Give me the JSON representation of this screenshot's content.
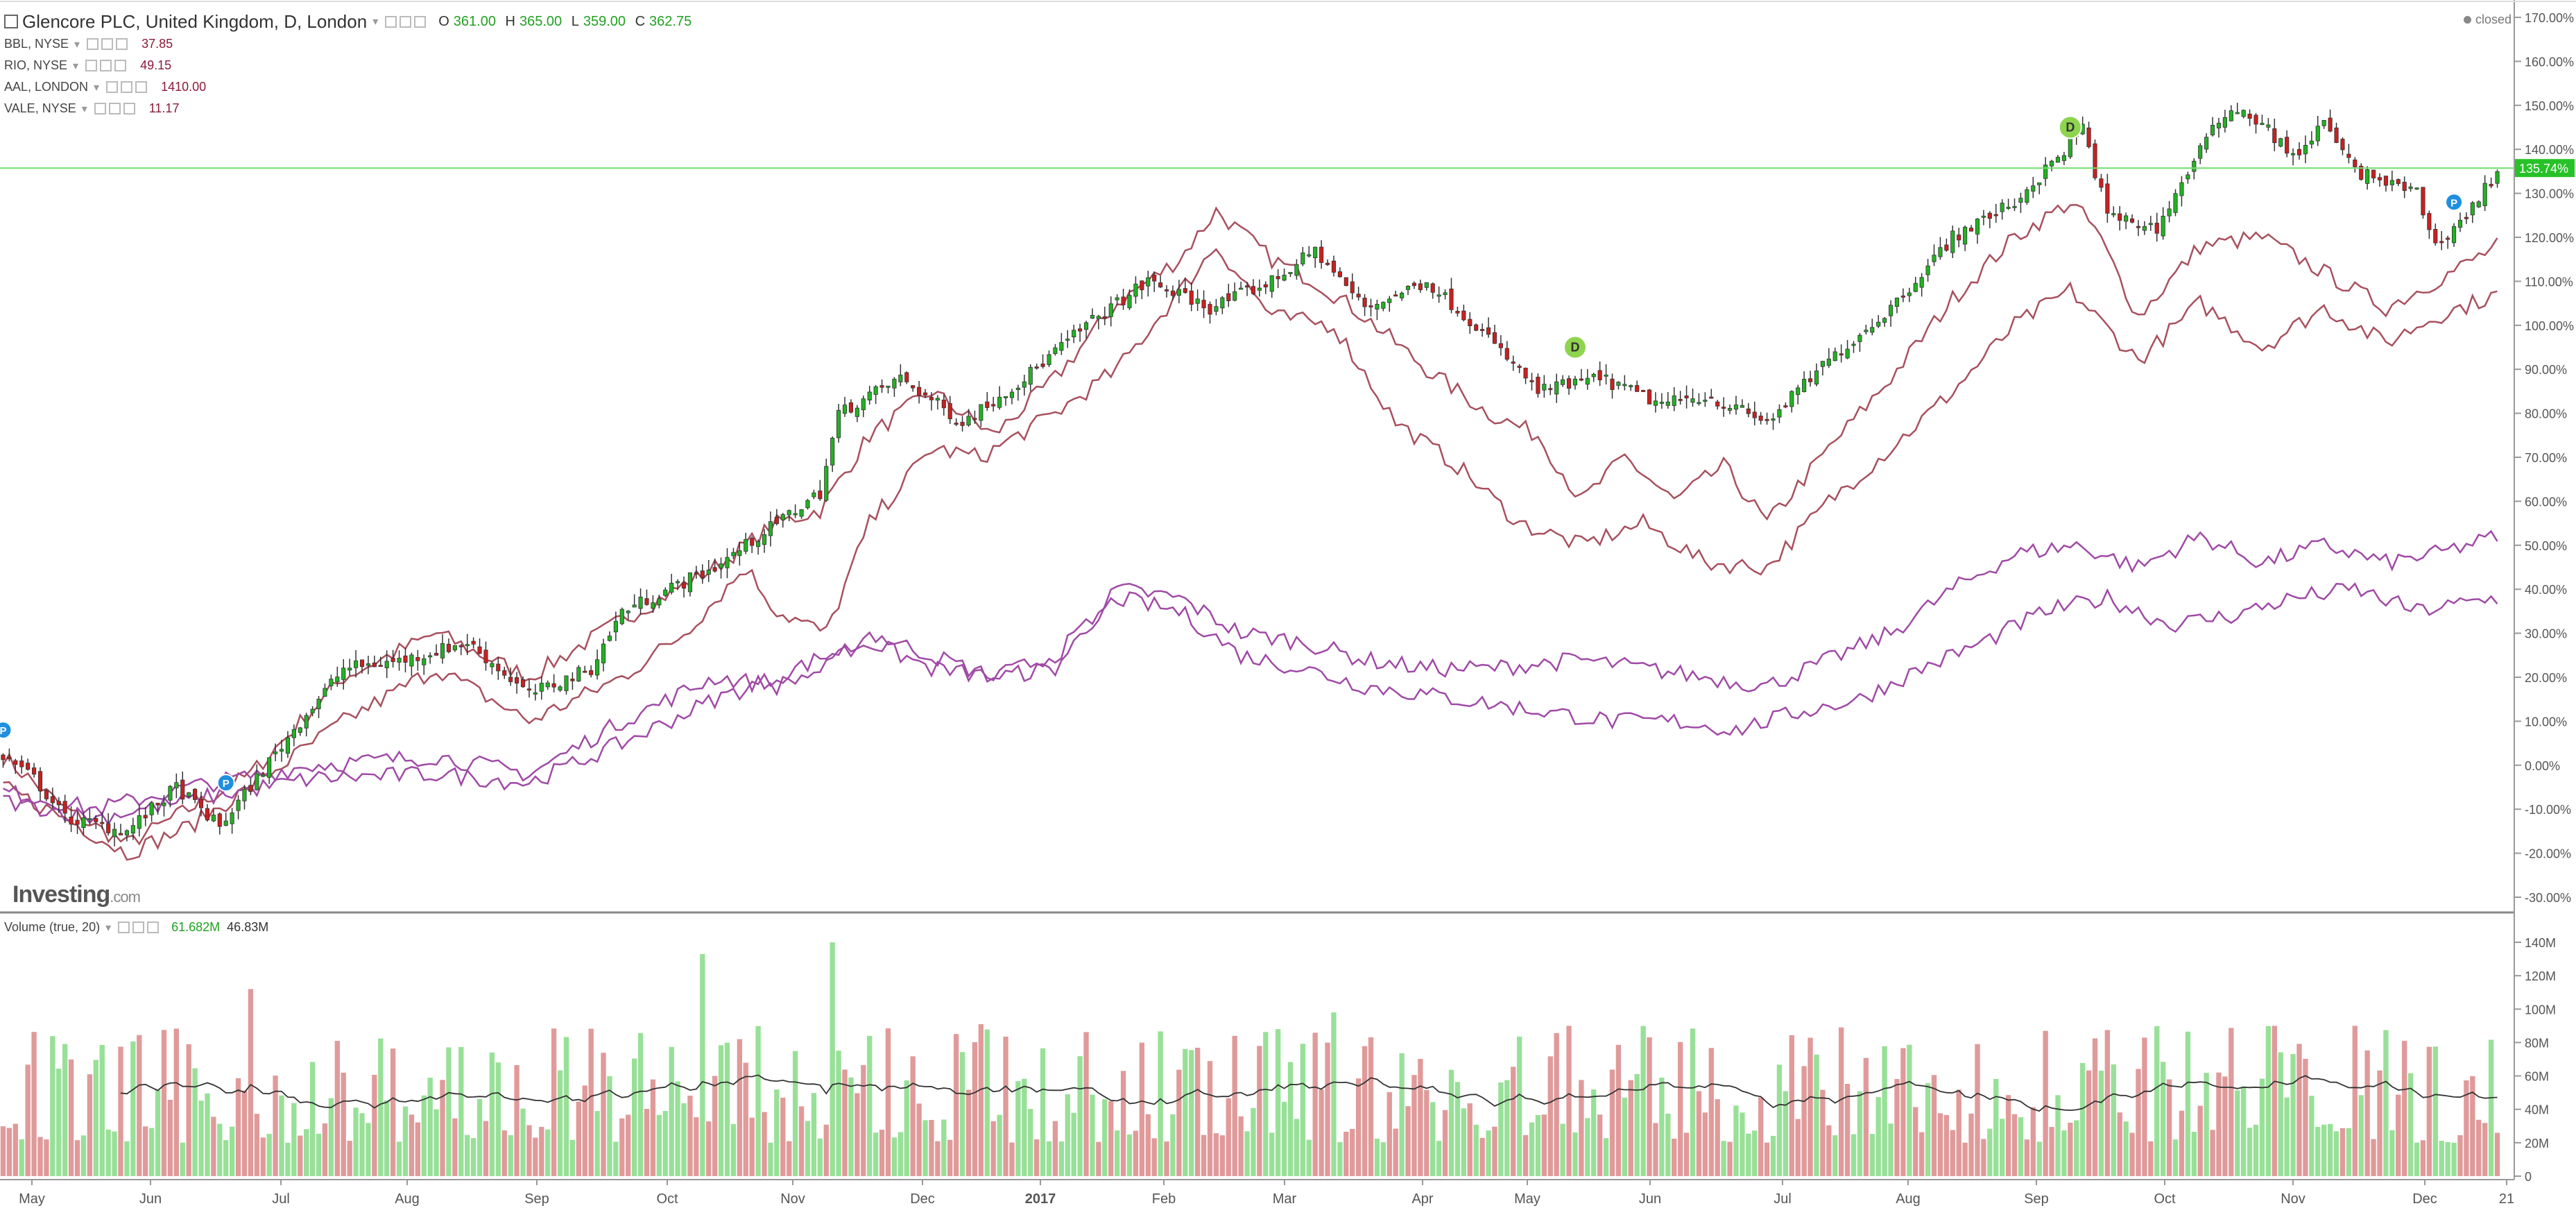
{
  "header": {
    "title": "Glencore PLC, United Kingdom, D, London",
    "ohlc": {
      "o_label": "O",
      "o": "361.00",
      "h_label": "H",
      "h": "365.00",
      "l_label": "L",
      "l": "359.00",
      "c_label": "C",
      "c": "362.75"
    }
  },
  "comparisons": [
    {
      "label": "BBL, NYSE",
      "value": "37.85"
    },
    {
      "label": "RIO, NYSE",
      "value": "49.15"
    },
    {
      "label": "AAL, LONDON",
      "value": "1410.00"
    },
    {
      "label": "VALE, NYSE",
      "value": "11.17"
    }
  ],
  "status": "closed",
  "logo": {
    "name": "Investing",
    "suffix": ".com"
  },
  "volume_legend": {
    "label": "Volume (true, 20)",
    "v1": "61.682M",
    "v2": "46.83M"
  },
  "colors": {
    "up": "#22b222",
    "down": "#cc1f1f",
    "vol_up": "#98e098",
    "vol_down": "#e09a9a",
    "compare_red": "#a8505e",
    "compare_purple": "#a04aa6"
  },
  "chart_data": {
    "type": "line",
    "price_axis_labels": [
      "170.00%",
      "160.00%",
      "150.00%",
      "140.00%",
      "130.00%",
      "120.00%",
      "110.00%",
      "100.00%",
      "90.00%",
      "80.00%",
      "70.00%",
      "60.00%",
      "50.00%",
      "40.00%",
      "30.00%",
      "20.00%",
      "10.00%",
      "0.00%",
      "-10.00%",
      "-20.00%",
      "-30.00%"
    ],
    "volume_axis_labels": [
      "140M",
      "120M",
      "100M",
      "80M",
      "60M",
      "40M",
      "20M",
      "0"
    ],
    "x_tick_labels": [
      "May",
      "Jun",
      "Jul",
      "Aug",
      "Sep",
      "Oct",
      "Nov",
      "Dec",
      "2017",
      "Feb",
      "Mar",
      "Apr",
      "May",
      "Jun",
      "Jul",
      "Aug",
      "Sep",
      "Oct",
      "Nov",
      "Dec",
      "21"
    ],
    "y_range": [
      -30,
      170
    ],
    "current_value_label": "135.74%",
    "current_value": 135.74,
    "markers": [
      {
        "symbol": "P",
        "x": 0,
        "y": 8
      },
      {
        "symbol": "P",
        "x": 36,
        "y": -4
      },
      {
        "symbol": "D",
        "x": 254,
        "y": 95
      },
      {
        "symbol": "D",
        "x": 334,
        "y": 145
      },
      {
        "symbol": "P",
        "x": 396,
        "y": 128
      }
    ],
    "series": [
      {
        "name": "Glencore PLC",
        "type": "candlestick",
        "keypoints": [
          [
            0,
            2
          ],
          [
            5,
            -3
          ],
          [
            10,
            -12
          ],
          [
            20,
            -15
          ],
          [
            28,
            -5
          ],
          [
            35,
            -14
          ],
          [
            48,
            10
          ],
          [
            55,
            22
          ],
          [
            65,
            24
          ],
          [
            75,
            28
          ],
          [
            85,
            16
          ],
          [
            95,
            22
          ],
          [
            100,
            35
          ],
          [
            115,
            45
          ],
          [
            125,
            55
          ],
          [
            132,
            62
          ],
          [
            135,
            80
          ],
          [
            145,
            88
          ],
          [
            155,
            78
          ],
          [
            165,
            88
          ],
          [
            175,
            100
          ],
          [
            185,
            110
          ],
          [
            195,
            104
          ],
          [
            205,
            110
          ],
          [
            212,
            117
          ],
          [
            220,
            104
          ],
          [
            230,
            110
          ],
          [
            238,
            100
          ],
          [
            248,
            85
          ],
          [
            258,
            88
          ],
          [
            268,
            82
          ],
          [
            275,
            84
          ],
          [
            285,
            78
          ],
          [
            295,
            92
          ],
          [
            305,
            104
          ],
          [
            315,
            120
          ],
          [
            325,
            128
          ],
          [
            332,
            138
          ],
          [
            336,
            145
          ],
          [
            340,
            125
          ],
          [
            348,
            122
          ],
          [
            355,
            140
          ],
          [
            360,
            150
          ],
          [
            365,
            146
          ],
          [
            370,
            138
          ],
          [
            375,
            146
          ],
          [
            380,
            135
          ],
          [
            390,
            130
          ],
          [
            393,
            118
          ],
          [
            398,
            125
          ],
          [
            403,
            135
          ]
        ]
      },
      {
        "name": "BBL, NYSE",
        "keypoints": [
          [
            0,
            2
          ],
          [
            10,
            -10
          ],
          [
            20,
            -18
          ],
          [
            30,
            -10
          ],
          [
            40,
            -2
          ],
          [
            55,
            20
          ],
          [
            70,
            30
          ],
          [
            85,
            20
          ],
          [
            100,
            33
          ],
          [
            115,
            45
          ],
          [
            125,
            55
          ],
          [
            132,
            58
          ],
          [
            140,
            75
          ],
          [
            150,
            85
          ],
          [
            160,
            75
          ],
          [
            170,
            88
          ],
          [
            180,
            105
          ],
          [
            190,
            115
          ],
          [
            196,
            126
          ],
          [
            205,
            115
          ],
          [
            212,
            110
          ],
          [
            220,
            102
          ],
          [
            230,
            90
          ],
          [
            240,
            80
          ],
          [
            248,
            75
          ],
          [
            255,
            60
          ],
          [
            262,
            70
          ],
          [
            270,
            60
          ],
          [
            278,
            68
          ],
          [
            285,
            55
          ],
          [
            295,
            72
          ],
          [
            305,
            88
          ],
          [
            315,
            106
          ],
          [
            325,
            120
          ],
          [
            334,
            128
          ],
          [
            338,
            122
          ],
          [
            345,
            102
          ],
          [
            355,
            118
          ],
          [
            365,
            120
          ],
          [
            375,
            112
          ],
          [
            385,
            104
          ],
          [
            393,
            110
          ],
          [
            403,
            118
          ]
        ]
      },
      {
        "name": "RIO, NYSE",
        "keypoints": [
          [
            0,
            -5
          ],
          [
            10,
            -12
          ],
          [
            20,
            -20
          ],
          [
            30,
            -14
          ],
          [
            40,
            -5
          ],
          [
            55,
            10
          ],
          [
            70,
            22
          ],
          [
            85,
            10
          ],
          [
            100,
            20
          ],
          [
            110,
            30
          ],
          [
            120,
            45
          ],
          [
            125,
            35
          ],
          [
            133,
            30
          ],
          [
            140,
            55
          ],
          [
            150,
            72
          ],
          [
            158,
            70
          ],
          [
            170,
            80
          ],
          [
            180,
            90
          ],
          [
            196,
            118
          ],
          [
            205,
            102
          ],
          [
            215,
            100
          ],
          [
            225,
            78
          ],
          [
            235,
            68
          ],
          [
            245,
            55
          ],
          [
            255,
            50
          ],
          [
            265,
            55
          ],
          [
            275,
            46
          ],
          [
            285,
            45
          ],
          [
            295,
            60
          ],
          [
            305,
            72
          ],
          [
            315,
            85
          ],
          [
            325,
            100
          ],
          [
            334,
            108
          ],
          [
            345,
            92
          ],
          [
            355,
            105
          ],
          [
            365,
            95
          ],
          [
            375,
            104
          ],
          [
            385,
            96
          ],
          [
            393,
            102
          ],
          [
            403,
            107
          ]
        ]
      },
      {
        "name": "AAL, LONDON",
        "keypoints": [
          [
            0,
            -6
          ],
          [
            15,
            -10
          ],
          [
            30,
            -5
          ],
          [
            50,
            0
          ],
          [
            70,
            2
          ],
          [
            85,
            -2
          ],
          [
            100,
            10
          ],
          [
            115,
            20
          ],
          [
            125,
            18
          ],
          [
            133,
            22
          ],
          [
            140,
            30
          ],
          [
            150,
            25
          ],
          [
            160,
            20
          ],
          [
            170,
            22
          ],
          [
            180,
            40
          ],
          [
            190,
            38
          ],
          [
            200,
            30
          ],
          [
            210,
            28
          ],
          [
            220,
            24
          ],
          [
            230,
            22
          ],
          [
            240,
            22
          ],
          [
            255,
            24
          ],
          [
            265,
            22
          ],
          [
            275,
            20
          ],
          [
            285,
            18
          ],
          [
            295,
            24
          ],
          [
            305,
            30
          ],
          [
            315,
            40
          ],
          [
            325,
            48
          ],
          [
            335,
            50
          ],
          [
            345,
            45
          ],
          [
            355,
            52
          ],
          [
            365,
            46
          ],
          [
            375,
            50
          ],
          [
            385,
            46
          ],
          [
            393,
            48
          ],
          [
            403,
            52
          ]
        ]
      },
      {
        "name": "VALE, NYSE",
        "keypoints": [
          [
            0,
            -8
          ],
          [
            15,
            -12
          ],
          [
            30,
            -8
          ],
          [
            50,
            -3
          ],
          [
            70,
            -2
          ],
          [
            85,
            -4
          ],
          [
            100,
            5
          ],
          [
            115,
            15
          ],
          [
            125,
            20
          ],
          [
            133,
            25
          ],
          [
            140,
            28
          ],
          [
            150,
            22
          ],
          [
            160,
            20
          ],
          [
            170,
            25
          ],
          [
            180,
            38
          ],
          [
            190,
            35
          ],
          [
            200,
            25
          ],
          [
            210,
            22
          ],
          [
            220,
            18
          ],
          [
            230,
            16
          ],
          [
            240,
            14
          ],
          [
            250,
            12
          ],
          [
            260,
            10
          ],
          [
            270,
            10
          ],
          [
            280,
            8
          ],
          [
            290,
            12
          ],
          [
            300,
            15
          ],
          [
            310,
            22
          ],
          [
            320,
            28
          ],
          [
            330,
            35
          ],
          [
            340,
            38
          ],
          [
            350,
            32
          ],
          [
            360,
            34
          ],
          [
            370,
            38
          ],
          [
            380,
            40
          ],
          [
            390,
            35
          ],
          [
            403,
            38
          ]
        ]
      }
    ],
    "volume": {
      "n_bars": 404,
      "range": [
        0,
        140
      ],
      "unit": "M",
      "typical_low": 20,
      "typical_high": 90,
      "spikes": [
        [
          40,
          112
        ],
        [
          113,
          133
        ],
        [
          134,
          140
        ],
        [
          140,
          84
        ],
        [
          158,
          91
        ],
        [
          206,
          88
        ],
        [
          215,
          98
        ],
        [
          253,
          90
        ],
        [
          330,
          87
        ],
        [
          367,
          90
        ],
        [
          380,
          90
        ]
      ]
    }
  }
}
